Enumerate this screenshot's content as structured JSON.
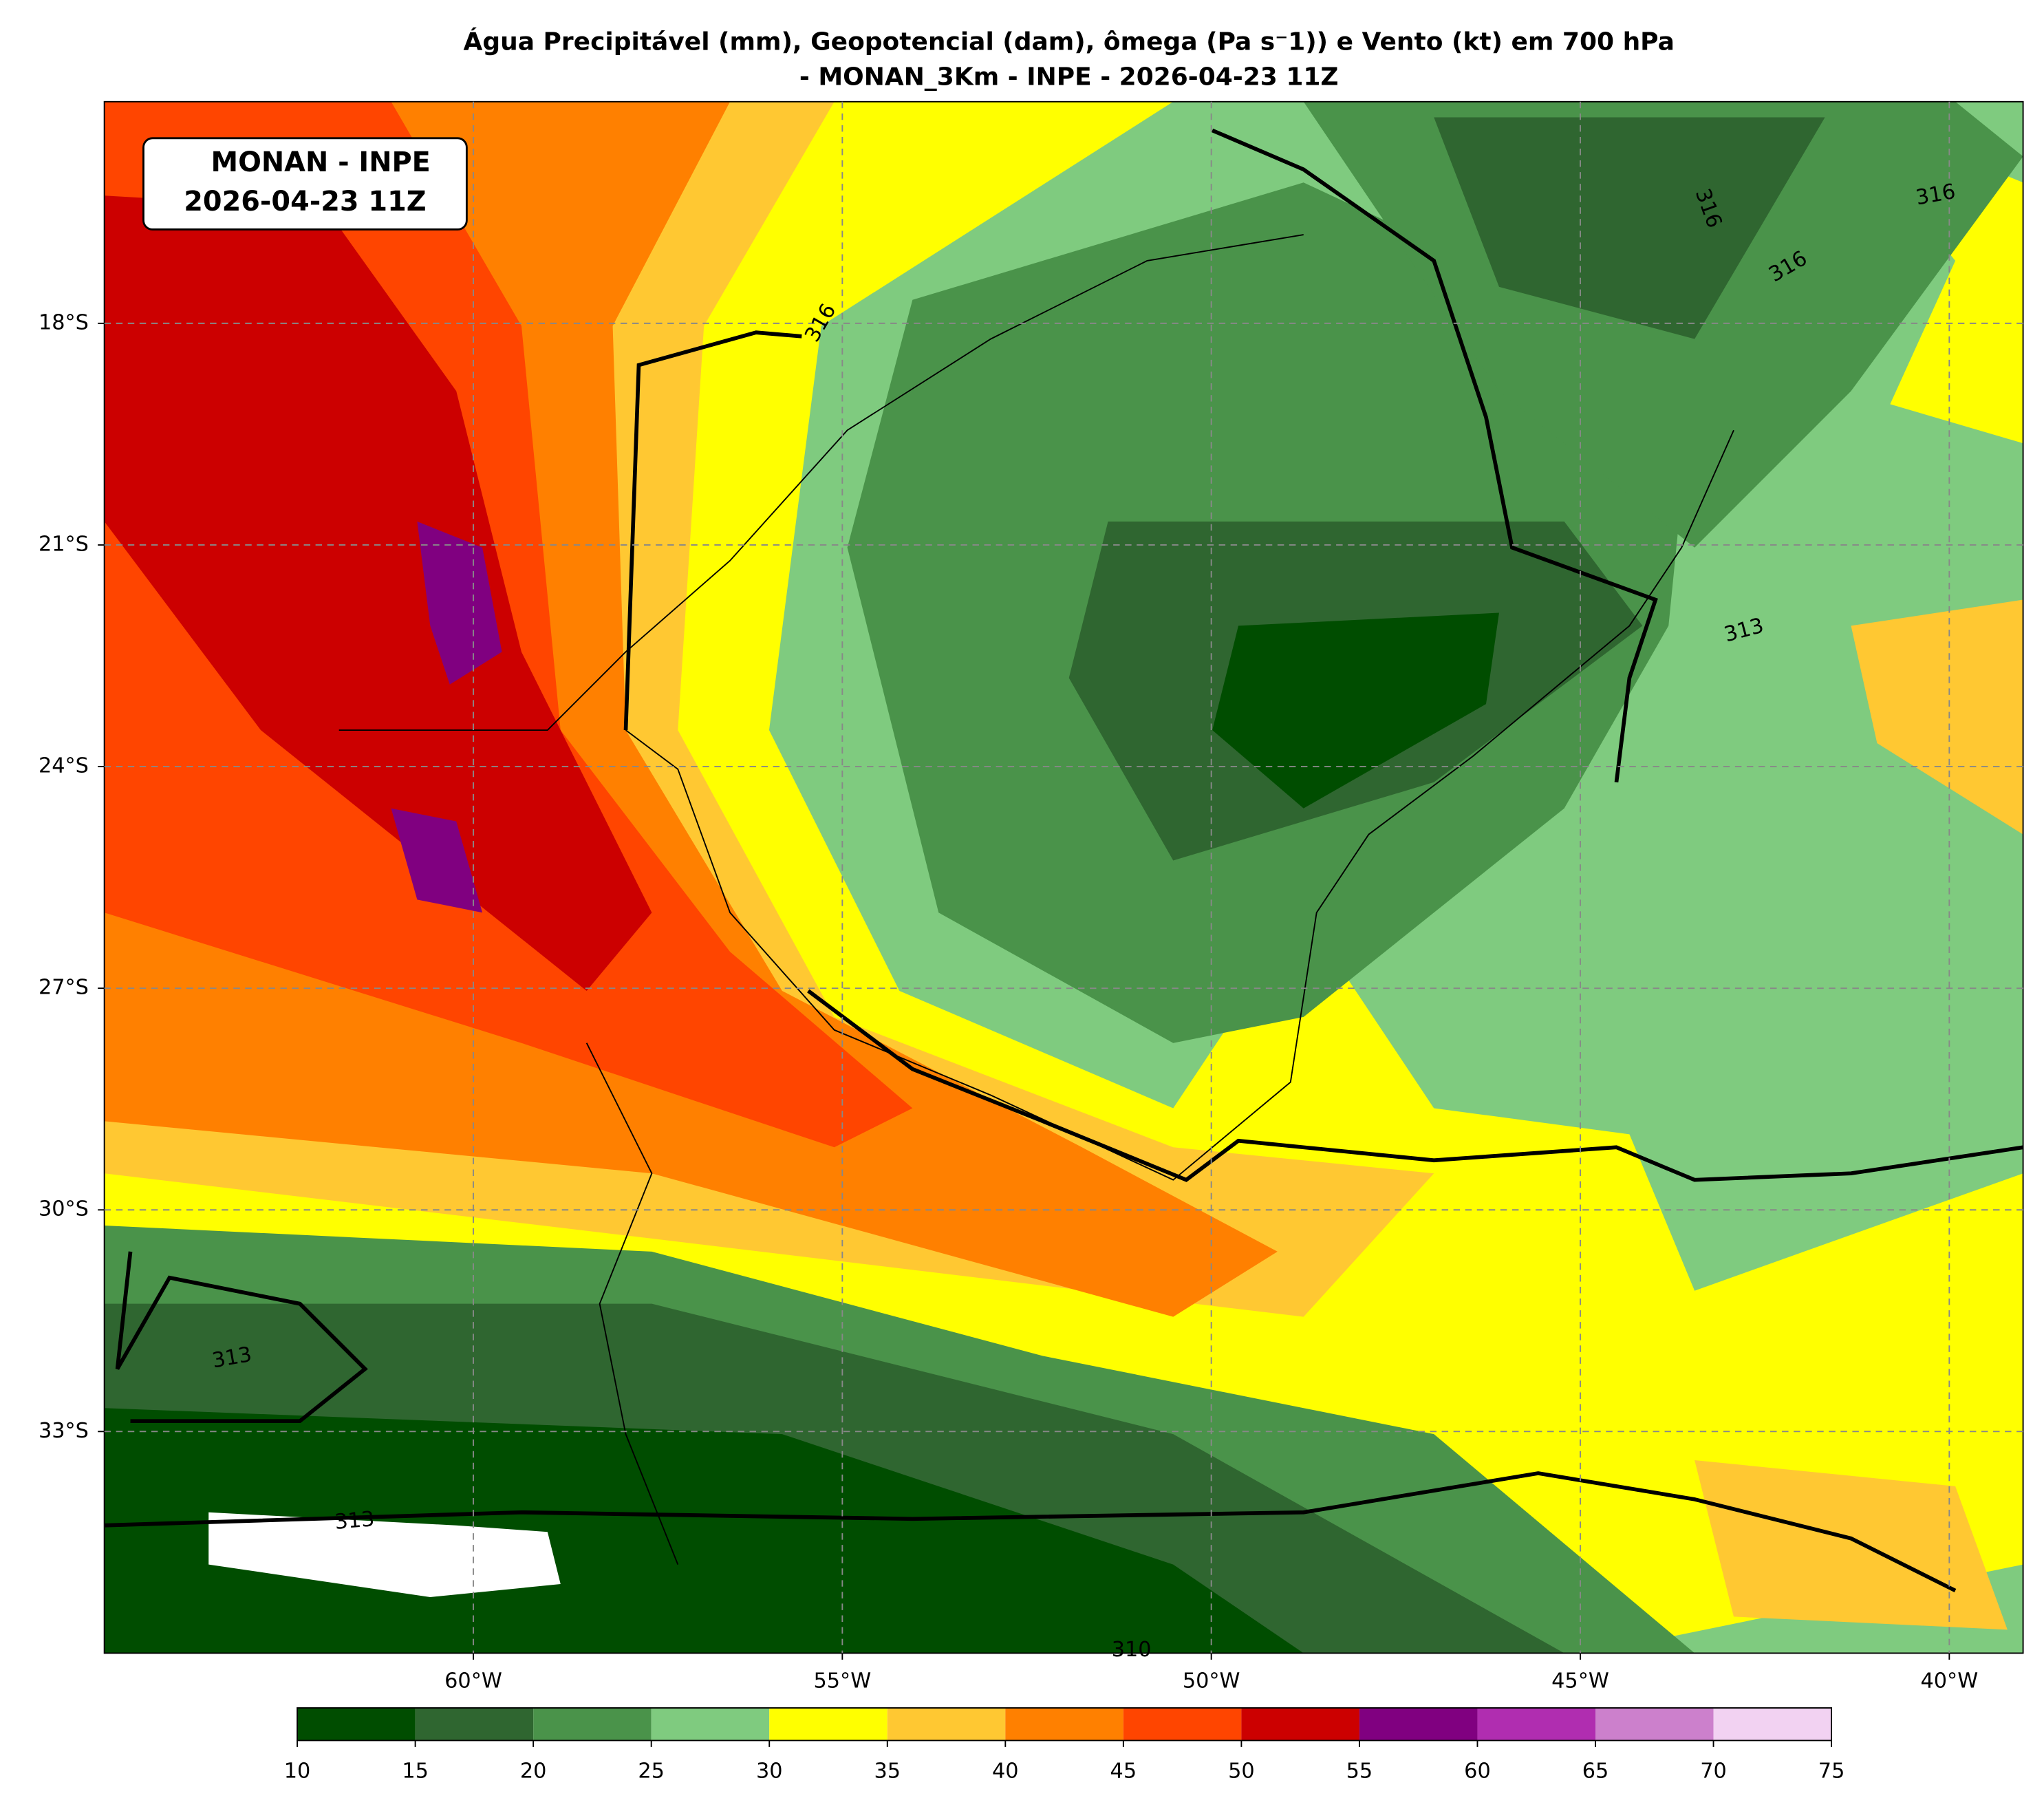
{
  "chart_data": {
    "type": "map",
    "title": [
      "Água Precipitável (mm), Geopotencial (dam), ômega (Pa s⁻1)) e Vento (kt) em 700 hPa",
      "- MONAN_3Km - INPE - 2026-04-23 11Z"
    ],
    "label_box": [
      "MONAN - INPE",
      "2026-04-23 11Z"
    ],
    "xlim": [
      -65,
      -39
    ],
    "ylim": [
      -36,
      -15
    ],
    "xticks": [
      {
        "value": -60,
        "label": "60°W"
      },
      {
        "value": -55,
        "label": "55°W"
      },
      {
        "value": -50,
        "label": "50°W"
      },
      {
        "value": -45,
        "label": "45°W"
      },
      {
        "value": -40,
        "label": "40°W"
      }
    ],
    "yticks": [
      {
        "value": -18,
        "label": "18°S"
      },
      {
        "value": -21,
        "label": "21°S"
      },
      {
        "value": -24,
        "label": "24°S"
      },
      {
        "value": -27,
        "label": "27°S"
      },
      {
        "value": -30,
        "label": "30°S"
      },
      {
        "value": -33,
        "label": "33°S"
      }
    ],
    "grid": true,
    "contour_labels": [
      316,
      316,
      316,
      316,
      313,
      313,
      313,
      310
    ],
    "colorbar": {
      "levels": [
        10,
        15,
        20,
        25,
        30,
        35,
        40,
        45,
        50,
        55,
        60,
        65,
        70,
        75
      ],
      "colors": [
        "#004d00",
        "#2f6630",
        "#4a934a",
        "#7fcb7f",
        "#ffff00",
        "#ffc832",
        "#ff8000",
        "#ff4500",
        "#cc0000",
        "#800080",
        "#b02db0",
        "#cc80cc",
        "#f2d2f2"
      ]
    }
  }
}
